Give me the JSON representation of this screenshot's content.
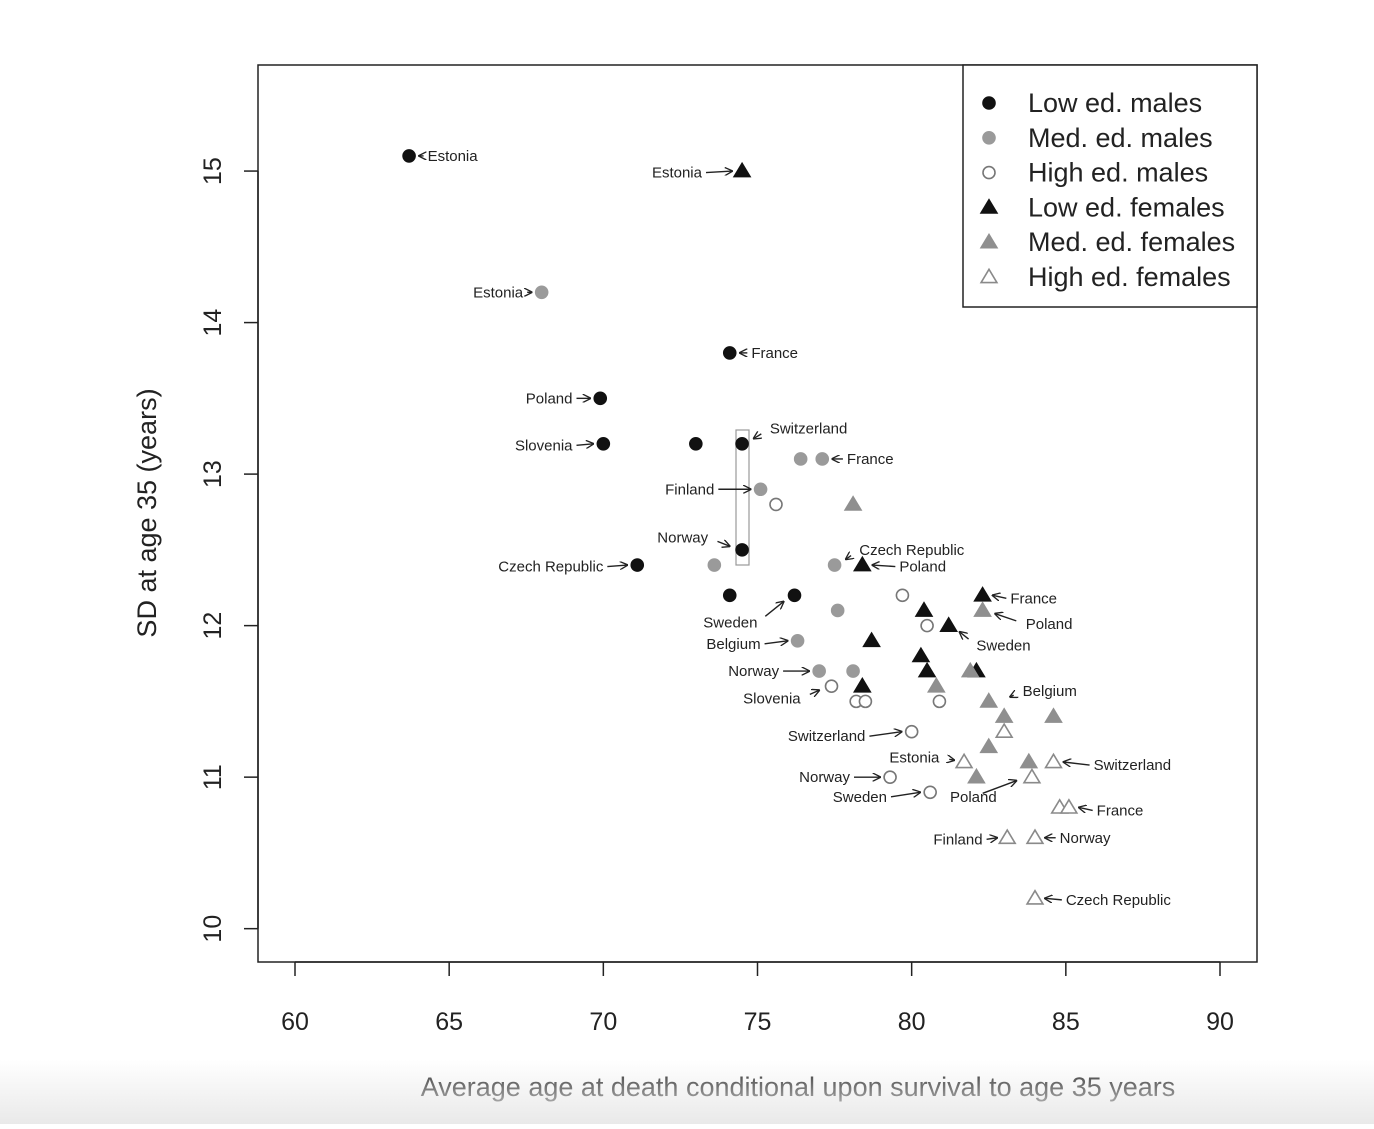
{
  "chart_data": {
    "type": "scatter",
    "title": "",
    "xlabel": "Average age at death conditional upon survival to age 35 years",
    "ylabel": "SD at age 35 (years)",
    "xlim": [
      58.8,
      91.2
    ],
    "ylim": [
      9.78,
      15.7
    ],
    "x_ticks": [
      "60",
      "65",
      "70",
      "75",
      "80",
      "85",
      "90"
    ],
    "y_ticks": [
      "10",
      "11",
      "12",
      "13",
      "14",
      "15"
    ],
    "grid": false,
    "legend_position": "top-right",
    "series": [
      {
        "name": "Low ed. males",
        "marker": "circle",
        "color": "#111111",
        "filled": true,
        "points": [
          {
            "x": 63.7,
            "y": 15.1
          },
          {
            "x": 74.1,
            "y": 13.8
          },
          {
            "x": 69.9,
            "y": 13.5
          },
          {
            "x": 70.0,
            "y": 13.2
          },
          {
            "x": 73.0,
            "y": 13.2
          },
          {
            "x": 74.5,
            "y": 13.2
          },
          {
            "x": 74.5,
            "y": 12.5
          },
          {
            "x": 71.1,
            "y": 12.4
          },
          {
            "x": 74.1,
            "y": 12.2
          },
          {
            "x": 76.2,
            "y": 12.2
          }
        ]
      },
      {
        "name": "Med. ed. males",
        "marker": "circle",
        "color": "#9a9a9a",
        "filled": true,
        "points": [
          {
            "x": 68.0,
            "y": 14.2
          },
          {
            "x": 76.4,
            "y": 13.1
          },
          {
            "x": 77.1,
            "y": 13.1
          },
          {
            "x": 75.1,
            "y": 12.9
          },
          {
            "x": 73.6,
            "y": 12.4
          },
          {
            "x": 77.5,
            "y": 12.4
          },
          {
            "x": 77.6,
            "y": 12.1
          },
          {
            "x": 76.3,
            "y": 11.9
          },
          {
            "x": 77.0,
            "y": 11.7
          },
          {
            "x": 78.1,
            "y": 11.7
          }
        ]
      },
      {
        "name": "High ed. males",
        "marker": "circle",
        "color": "#777777",
        "filled": false,
        "points": [
          {
            "x": 75.6,
            "y": 12.8
          },
          {
            "x": 79.7,
            "y": 12.2
          },
          {
            "x": 80.5,
            "y": 12.0
          },
          {
            "x": 77.4,
            "y": 11.6
          },
          {
            "x": 78.2,
            "y": 11.5
          },
          {
            "x": 78.5,
            "y": 11.5
          },
          {
            "x": 80.9,
            "y": 11.5
          },
          {
            "x": 80.0,
            "y": 11.3
          },
          {
            "x": 79.3,
            "y": 11.0
          },
          {
            "x": 80.6,
            "y": 10.9
          }
        ]
      },
      {
        "name": "Low ed. females",
        "marker": "triangle",
        "color": "#111111",
        "filled": true,
        "points": [
          {
            "x": 74.5,
            "y": 15.0
          },
          {
            "x": 78.4,
            "y": 12.4
          },
          {
            "x": 82.3,
            "y": 12.2
          },
          {
            "x": 80.4,
            "y": 12.1
          },
          {
            "x": 81.2,
            "y": 12.0
          },
          {
            "x": 78.7,
            "y": 11.9
          },
          {
            "x": 80.3,
            "y": 11.8
          },
          {
            "x": 80.5,
            "y": 11.7
          },
          {
            "x": 82.1,
            "y": 11.7
          },
          {
            "x": 78.4,
            "y": 11.6
          }
        ]
      },
      {
        "name": "Med. ed. females",
        "marker": "triangle",
        "color": "#8f8f8f",
        "filled": true,
        "points": [
          {
            "x": 78.1,
            "y": 12.8
          },
          {
            "x": 82.3,
            "y": 12.1
          },
          {
            "x": 81.9,
            "y": 11.7
          },
          {
            "x": 80.8,
            "y": 11.6
          },
          {
            "x": 82.5,
            "y": 11.5
          },
          {
            "x": 83.0,
            "y": 11.4
          },
          {
            "x": 84.6,
            "y": 11.4
          },
          {
            "x": 82.5,
            "y": 11.2
          },
          {
            "x": 83.8,
            "y": 11.1
          },
          {
            "x": 82.1,
            "y": 11.0
          }
        ]
      },
      {
        "name": "High ed. females",
        "marker": "triangle",
        "color": "#8a8a8a",
        "filled": false,
        "points": [
          {
            "x": 83.0,
            "y": 11.3
          },
          {
            "x": 81.7,
            "y": 11.1
          },
          {
            "x": 84.6,
            "y": 11.1
          },
          {
            "x": 83.9,
            "y": 11.0
          },
          {
            "x": 84.8,
            "y": 10.8
          },
          {
            "x": 85.1,
            "y": 10.8
          },
          {
            "x": 83.1,
            "y": 10.6
          },
          {
            "x": 84.0,
            "y": 10.6
          },
          {
            "x": 84.0,
            "y": 10.2
          }
        ]
      }
    ],
    "annotations": [
      {
        "text": "Estonia",
        "x": 64.3,
        "y": 15.1,
        "anchor": "start",
        "arrow": "left",
        "ax": 63.7,
        "ay": 15.1
      },
      {
        "text": "Estonia",
        "x": 73.2,
        "y": 14.99,
        "anchor": "end",
        "arrow": "right",
        "ax": 74.5,
        "ay": 15.0
      },
      {
        "text": "Estonia",
        "x": 67.4,
        "y": 14.2,
        "anchor": "end",
        "arrow": "right",
        "ax": 68.0,
        "ay": 14.2
      },
      {
        "text": "France",
        "x": 74.8,
        "y": 13.8,
        "anchor": "start",
        "arrow": "left",
        "ax": 74.1,
        "ay": 13.8
      },
      {
        "text": "Poland",
        "x": 69.0,
        "y": 13.5,
        "anchor": "end",
        "arrow": "right",
        "ax": 69.9,
        "ay": 13.5
      },
      {
        "text": "Slovenia",
        "x": 69.0,
        "y": 13.19,
        "anchor": "end",
        "arrow": "right",
        "ax": 70.0,
        "ay": 13.2
      },
      {
        "text": "Switzerland",
        "x": 75.4,
        "y": 13.3,
        "anchor": "start",
        "arrow": "diag",
        "ax": 74.6,
        "ay": 13.2
      },
      {
        "text": "France",
        "x": 77.9,
        "y": 13.1,
        "anchor": "start",
        "arrow": "left",
        "ax": 77.1,
        "ay": 13.1
      },
      {
        "text": "Finland",
        "x": 73.6,
        "y": 12.9,
        "anchor": "end",
        "arrow": "right",
        "ax": 75.1,
        "ay": 12.9
      },
      {
        "text": "Norway",
        "x": 73.4,
        "y": 12.58,
        "anchor": "end",
        "arrow": "diag",
        "ax": 74.4,
        "ay": 12.5
      },
      {
        "text": "Czech Republic",
        "x": 78.3,
        "y": 12.5,
        "anchor": "start",
        "arrow": "diag",
        "ax": 77.6,
        "ay": 12.4
      },
      {
        "text": "Poland",
        "x": 79.6,
        "y": 12.39,
        "anchor": "start",
        "arrow": "left",
        "ax": 78.4,
        "ay": 12.4
      },
      {
        "text": "Czech Republic",
        "x": 70.0,
        "y": 12.39,
        "anchor": "end",
        "arrow": "right",
        "ax": 71.1,
        "ay": 12.4
      },
      {
        "text": "France",
        "x": 83.2,
        "y": 12.18,
        "anchor": "start",
        "arrow": "left",
        "ax": 82.3,
        "ay": 12.2
      },
      {
        "text": "Poland",
        "x": 83.7,
        "y": 12.01,
        "anchor": "start",
        "arrow": "diag",
        "ax": 82.4,
        "ay": 12.1
      },
      {
        "text": "Sweden",
        "x": 75.0,
        "y": 12.02,
        "anchor": "end",
        "arrow": "diag",
        "ax": 76.1,
        "ay": 12.2
      },
      {
        "text": "Sweden",
        "x": 82.1,
        "y": 11.87,
        "anchor": "start",
        "arrow": "diag",
        "ax": 81.3,
        "ay": 12.0
      },
      {
        "text": "Belgium",
        "x": 75.1,
        "y": 11.88,
        "anchor": "end",
        "arrow": "right",
        "ax": 76.3,
        "ay": 11.9
      },
      {
        "text": "Norway",
        "x": 75.7,
        "y": 11.7,
        "anchor": "end",
        "arrow": "right",
        "ax": 77.0,
        "ay": 11.7
      },
      {
        "text": "Belgium",
        "x": 83.6,
        "y": 11.57,
        "anchor": "start",
        "arrow": "diag",
        "ax": 82.9,
        "ay": 11.5
      },
      {
        "text": "Slovenia",
        "x": 76.4,
        "y": 11.52,
        "anchor": "end",
        "arrow": "diag",
        "ax": 77.3,
        "ay": 11.6
      },
      {
        "text": "Switzerland",
        "x": 78.5,
        "y": 11.27,
        "anchor": "end",
        "arrow": "right",
        "ax": 80.0,
        "ay": 11.3
      },
      {
        "text": "Estonia",
        "x": 80.9,
        "y": 11.13,
        "anchor": "end",
        "arrow": "diag",
        "ax": 81.7,
        "ay": 11.1
      },
      {
        "text": "Switzerland",
        "x": 85.9,
        "y": 11.08,
        "anchor": "start",
        "arrow": "left",
        "ax": 84.6,
        "ay": 11.1
      },
      {
        "text": "Norway",
        "x": 78.0,
        "y": 11.0,
        "anchor": "end",
        "arrow": "right",
        "ax": 79.3,
        "ay": 11.0
      },
      {
        "text": "Sweden",
        "x": 79.2,
        "y": 10.87,
        "anchor": "end",
        "arrow": "right",
        "ax": 80.6,
        "ay": 10.9
      },
      {
        "text": "Poland",
        "x": 82.0,
        "y": 10.87,
        "anchor": "middle",
        "arrow": "diag",
        "ax": 83.7,
        "ay": 11.0
      },
      {
        "text": "France",
        "x": 86.0,
        "y": 10.78,
        "anchor": "start",
        "arrow": "left",
        "ax": 85.1,
        "ay": 10.8
      },
      {
        "text": "Finland",
        "x": 82.3,
        "y": 10.59,
        "anchor": "end",
        "arrow": "right",
        "ax": 83.1,
        "ay": 10.6
      },
      {
        "text": "Norway",
        "x": 84.8,
        "y": 10.6,
        "anchor": "start",
        "arrow": "left",
        "ax": 84.0,
        "ay": 10.6
      },
      {
        "text": "Czech Republic",
        "x": 85.0,
        "y": 10.19,
        "anchor": "start",
        "arrow": "left",
        "ax": 84.0,
        "ay": 10.2
      }
    ]
  }
}
